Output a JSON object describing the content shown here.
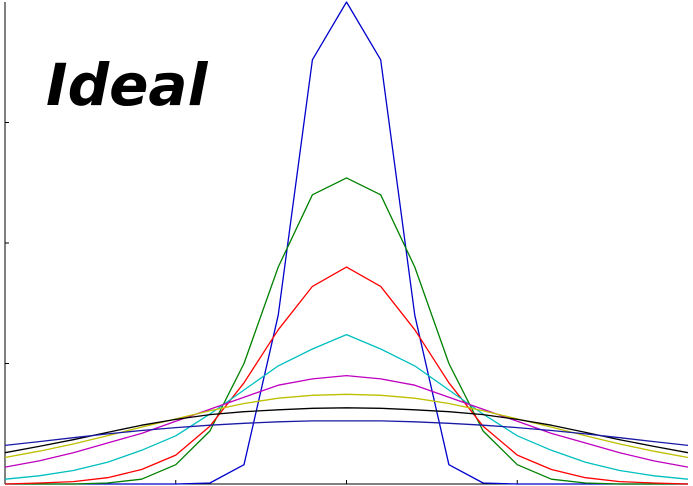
{
  "chart_data": {
    "type": "line",
    "title": "Ideal",
    "xlabel": "",
    "ylabel": "",
    "xlim": [
      -10,
      10
    ],
    "ylim": [
      0,
      1
    ],
    "grid": false,
    "legend": "none",
    "series": [
      {
        "color": "#0000cc",
        "x": [
          -10,
          -9,
          -8,
          -7,
          -6,
          -5,
          -4,
          -3,
          -2,
          -1,
          0,
          1,
          2,
          3,
          4,
          5,
          6,
          7,
          8,
          9,
          10
        ],
        "y": [
          0,
          0,
          0,
          0,
          0,
          0,
          0.002,
          0.04,
          0.35,
          0.88,
          1.0,
          0.88,
          0.35,
          0.04,
          0.002,
          0,
          0,
          0,
          0,
          0,
          0
        ]
      },
      {
        "color": "#008000",
        "x": [
          -10,
          -9,
          -8,
          -7,
          -6,
          -5,
          -4,
          -3,
          -2,
          -1,
          0,
          1,
          2,
          3,
          4,
          5,
          6,
          7,
          8,
          9,
          10
        ],
        "y": [
          0,
          0,
          0,
          0.002,
          0.01,
          0.04,
          0.11,
          0.25,
          0.45,
          0.6,
          0.635,
          0.6,
          0.45,
          0.25,
          0.11,
          0.04,
          0.01,
          0.002,
          0,
          0,
          0
        ]
      },
      {
        "color": "#ff0000",
        "x": [
          -10,
          -9,
          -8,
          -7,
          -6,
          -5,
          -4,
          -3,
          -2,
          -1,
          0,
          1,
          2,
          3,
          4,
          5,
          6,
          7,
          8,
          9,
          10
        ],
        "y": [
          0,
          0.002,
          0.005,
          0.013,
          0.03,
          0.06,
          0.12,
          0.21,
          0.32,
          0.41,
          0.45,
          0.41,
          0.32,
          0.21,
          0.12,
          0.06,
          0.03,
          0.013,
          0.005,
          0.002,
          0
        ]
      },
      {
        "color": "#00bfbf",
        "x": [
          -10,
          -9,
          -8,
          -7,
          -6,
          -5,
          -4,
          -3,
          -2,
          -1,
          0,
          1,
          2,
          3,
          4,
          5,
          6,
          7,
          8,
          9,
          10
        ],
        "y": [
          0.01,
          0.017,
          0.028,
          0.045,
          0.07,
          0.1,
          0.145,
          0.195,
          0.245,
          0.28,
          0.31,
          0.28,
          0.245,
          0.195,
          0.145,
          0.1,
          0.07,
          0.045,
          0.028,
          0.017,
          0.01
        ]
      },
      {
        "color": "#bf00bf",
        "x": [
          -10,
          -9,
          -8,
          -7,
          -6,
          -5,
          -4,
          -3,
          -2,
          -1,
          0,
          1,
          2,
          3,
          4,
          5,
          6,
          7,
          8,
          9,
          10
        ],
        "y": [
          0.035,
          0.048,
          0.065,
          0.085,
          0.105,
          0.13,
          0.155,
          0.18,
          0.205,
          0.218,
          0.225,
          0.218,
          0.205,
          0.18,
          0.155,
          0.13,
          0.105,
          0.085,
          0.065,
          0.048,
          0.035
        ]
      },
      {
        "color": "#bfbf00",
        "x": [
          -10,
          -9,
          -8,
          -7,
          -6,
          -5,
          -4,
          -3,
          -2,
          -1,
          0,
          1,
          2,
          3,
          4,
          5,
          6,
          7,
          8,
          9,
          10
        ],
        "y": [
          0.055,
          0.068,
          0.083,
          0.1,
          0.118,
          0.135,
          0.152,
          0.167,
          0.178,
          0.184,
          0.186,
          0.184,
          0.178,
          0.167,
          0.152,
          0.135,
          0.118,
          0.1,
          0.083,
          0.068,
          0.055
        ]
      },
      {
        "color": "#000000",
        "x": [
          -10,
          -9,
          -8,
          -7,
          -6,
          -5,
          -4,
          -3,
          -2,
          -1,
          0,
          1,
          2,
          3,
          4,
          5,
          6,
          7,
          8,
          9,
          10
        ],
        "y": [
          0.065,
          0.078,
          0.092,
          0.107,
          0.122,
          0.134,
          0.144,
          0.15,
          0.154,
          0.157,
          0.158,
          0.157,
          0.154,
          0.15,
          0.144,
          0.134,
          0.122,
          0.107,
          0.092,
          0.078,
          0.065
        ]
      },
      {
        "color": "#1a1aa6",
        "x": [
          -10,
          -9,
          -8,
          -7,
          -6,
          -5,
          -4,
          -3,
          -2,
          -1,
          0,
          1,
          2,
          3,
          4,
          5,
          6,
          7,
          8,
          9,
          10
        ],
        "y": [
          0.08,
          0.088,
          0.096,
          0.104,
          0.111,
          0.117,
          0.122,
          0.126,
          0.129,
          0.131,
          0.131,
          0.131,
          0.129,
          0.126,
          0.122,
          0.117,
          0.111,
          0.104,
          0.096,
          0.088,
          0.08
        ]
      }
    ]
  }
}
